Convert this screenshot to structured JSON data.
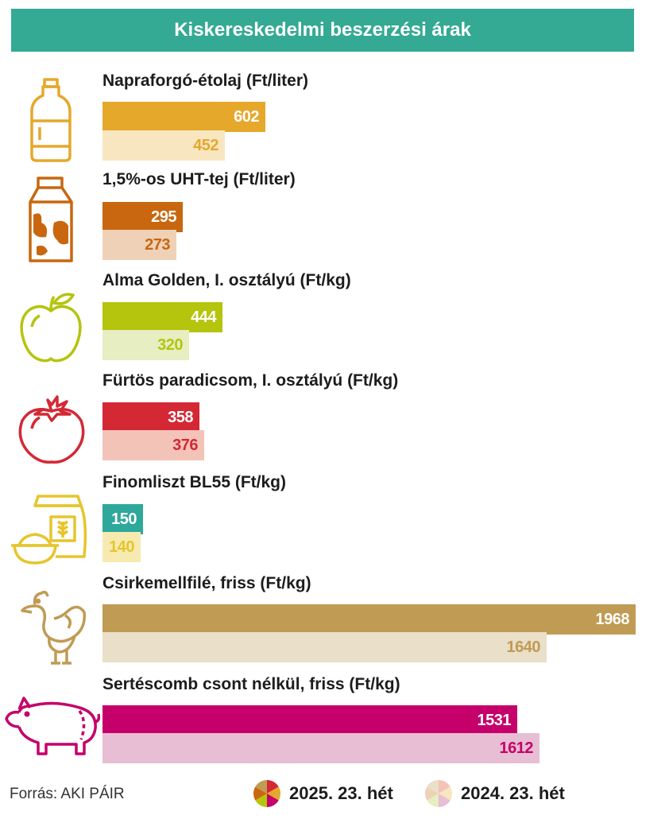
{
  "header": {
    "title": "Kiskereskedelmi beszerzési árak"
  },
  "chart_data": {
    "type": "bar",
    "orientation": "horizontal",
    "title": "Kiskereskedelmi beszerzési árak",
    "categories": [
      "Napraforgó-étolaj (Ft/liter)",
      "1,5%-os UHT-tej (Ft/liter)",
      "Alma Golden, I. osztályú (Ft/kg)",
      "Fürtös paradicsom, I. osztályú (Ft/kg)",
      "Finomliszt BL55 (Ft/kg)",
      "Csirkemellfilé, friss (Ft/kg)",
      "Sertéscomb csont nélkül, friss (Ft/kg)"
    ],
    "series": [
      {
        "name": "2025. 23. hét",
        "values": [
          602,
          295,
          444,
          358,
          150,
          1968,
          1531
        ]
      },
      {
        "name": "2024. 23. hét",
        "values": [
          452,
          273,
          320,
          376,
          140,
          1640,
          1612
        ]
      }
    ],
    "xlim": [
      0,
      1968
    ],
    "grid": false,
    "legend": "bottom",
    "colors": {
      "current": [
        "#e5a82a",
        "#c8670f",
        "#b5c40d",
        "#d42835",
        "#2ea89b",
        "#c09b53",
        "#c5006b"
      ],
      "previous": [
        "#f7e6bf",
        "#efd1b8",
        "#e6eec2",
        "#f3c3b8",
        "#f7eab0",
        "#eadfc8",
        "#e7bed3"
      ],
      "previous_label": [
        "#e5a82a",
        "#c8670f",
        "#b5c40d",
        "#d42835",
        "#e6c52c",
        "#c09b53",
        "#c5006b"
      ]
    }
  },
  "icons": [
    "oil-bottle-icon",
    "milk-carton-icon",
    "apple-icon",
    "tomato-icon",
    "flour-sack-icon",
    "chicken-icon",
    "pig-icon"
  ],
  "footer": {
    "source": "Forrás: AKI PÁIR",
    "legend": [
      "2025. 23. hét",
      "2024. 23. hét"
    ]
  }
}
